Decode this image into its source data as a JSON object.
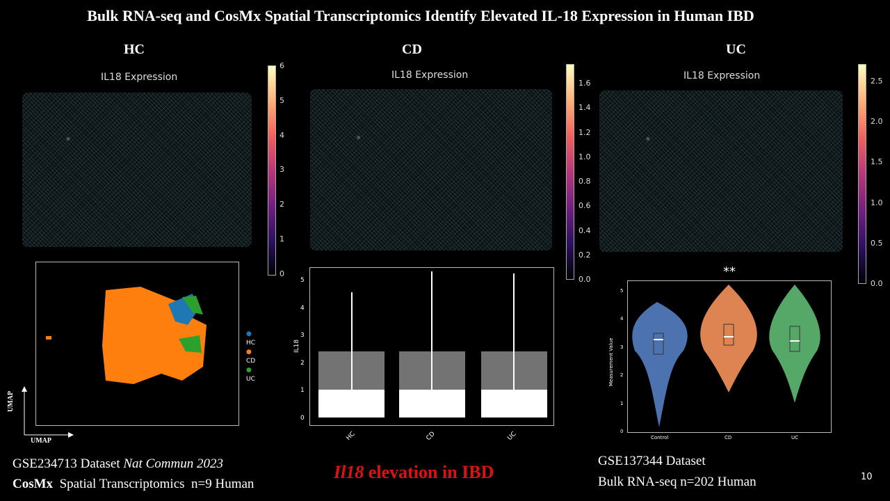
{
  "slide": {
    "title": "Bulk RNA-seq and CosMx Spatial Transcriptomics Identify Elevated IL-18 Expression in Human IBD",
    "page_number": "10"
  },
  "panels": {
    "hc": {
      "label": "HC",
      "image_title": "IL18 Expression",
      "colorbar_ticks": [
        "6",
        "5",
        "4",
        "3",
        "2",
        "1",
        "0"
      ]
    },
    "cd": {
      "label": "CD",
      "image_title": "IL18 Expression",
      "colorbar_ticks": [
        "1.6",
        "1.4",
        "1.2",
        "1.0",
        "0.8",
        "0.6",
        "0.4",
        "0.2",
        "0.0"
      ]
    },
    "uc": {
      "label": "UC",
      "image_title": "IL18 Expression",
      "colorbar_ticks": [
        "2.5",
        "2.0",
        "1.5",
        "1.0",
        "0.5",
        "0.0"
      ]
    }
  },
  "umap": {
    "legend": [
      {
        "label": "HC",
        "color": "#1f77b4"
      },
      {
        "label": "CD",
        "color": "#ff7f0e"
      },
      {
        "label": "UC",
        "color": "#2ca02c"
      }
    ],
    "x_axis_label": "UMAP",
    "y_axis_label": "UMAP"
  },
  "violin_il18": {
    "ylabel": "IL18",
    "categories": [
      "HC",
      "CD",
      "UC"
    ],
    "yticks": [
      "5",
      "4",
      "3",
      "2",
      "1",
      "0"
    ]
  },
  "violin_bulk": {
    "ylabel": "Measurement Value",
    "categories": [
      "Control",
      "CD",
      "UC"
    ],
    "yticks": [
      "5",
      "4",
      "3",
      "2",
      "1",
      "0"
    ],
    "significance": "**",
    "colors": [
      "#4c72b0",
      "#dd8452",
      "#55a868"
    ]
  },
  "footer": {
    "left_line1_a": "GSE234713 Dataset ",
    "left_line1_b": "Nat Commun 2023",
    "left_line2_a": "CosMx",
    "left_line2_b": "  Spatial Transcriptomics  n=9 Human",
    "center_a": "Il18",
    "center_b": " elevation in IBD",
    "right_line1": "GSE137344 Dataset",
    "right_line2": "Bulk RNA-seq n=202 Human"
  },
  "chart_data": [
    {
      "type": "violin",
      "title": "",
      "ylabel": "IL18",
      "categories": [
        "HC",
        "CD",
        "UC"
      ],
      "ylim": [
        0,
        5.3
      ]
    },
    {
      "type": "violin",
      "title": "",
      "ylabel": "Measurement Value",
      "categories": [
        "Control",
        "CD",
        "UC"
      ],
      "ylim": [
        0,
        5.3
      ],
      "medians": [
        3.3,
        3.4,
        3.25
      ],
      "annotation": "**"
    }
  ]
}
